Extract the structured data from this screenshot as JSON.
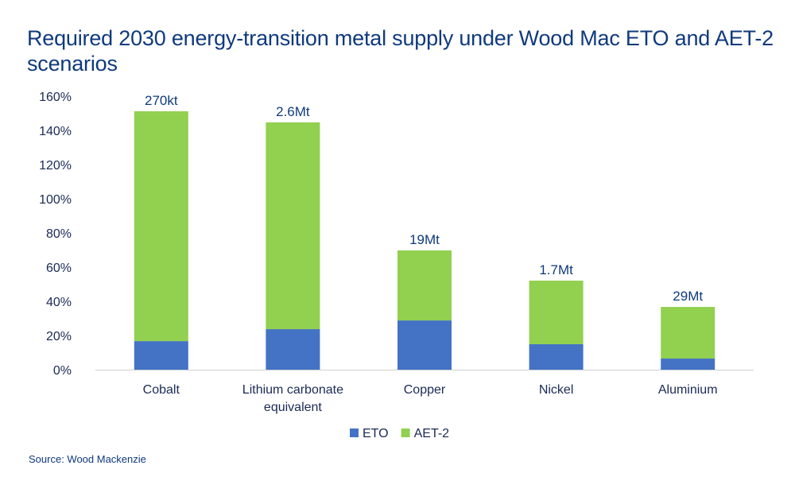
{
  "chart_data": {
    "type": "bar",
    "stacked": true,
    "title": "Required 2030 energy-transition metal supply under Wood Mac ETO and AET-2 scenarios",
    "categories": [
      [
        "Cobalt"
      ],
      [
        "Lithium carbonate",
        "equivalent"
      ],
      [
        "Copper"
      ],
      [
        "Nickel"
      ],
      [
        "Aluminium"
      ]
    ],
    "series": [
      {
        "name": "ETO",
        "color": "#4472c4",
        "values": [
          16.7,
          23.7,
          28.8,
          14.9,
          6.5
        ]
      },
      {
        "name": "AET-2",
        "color": "#92d050",
        "values": [
          134.5,
          121.0,
          41.0,
          37.2,
          30.2
        ]
      }
    ],
    "data_labels": [
      "270kt",
      "2.6Mt",
      "19Mt",
      "1.7Mt",
      "29Mt"
    ],
    "yticks": [
      "0%",
      "20%",
      "40%",
      "60%",
      "80%",
      "100%",
      "120%",
      "140%",
      "160%"
    ],
    "ylim": [
      0,
      160
    ],
    "xlabel": "",
    "ylabel": "",
    "grid": false,
    "legend": "bottom"
  },
  "source": "Source: Wood Mackenzie"
}
